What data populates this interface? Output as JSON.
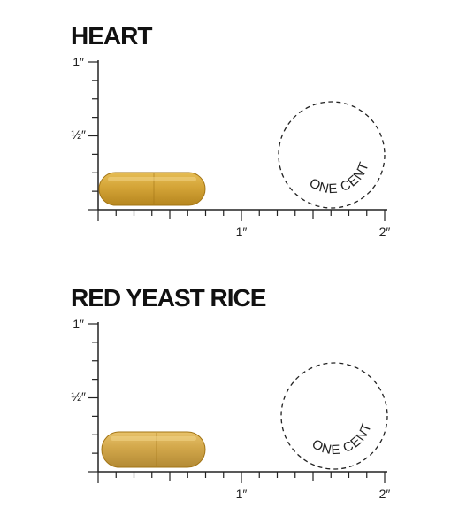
{
  "panels": [
    {
      "title": "HEART",
      "y_labels": [
        "1″",
        "½″"
      ],
      "x_labels": [
        "1″",
        "2″"
      ],
      "coin_label": "ONE CENT"
    },
    {
      "title": "RED YEAST RICE",
      "y_labels": [
        "1″",
        "½″"
      ],
      "x_labels": [
        "1″",
        "2″"
      ],
      "coin_label": "ONE CENT"
    }
  ]
}
